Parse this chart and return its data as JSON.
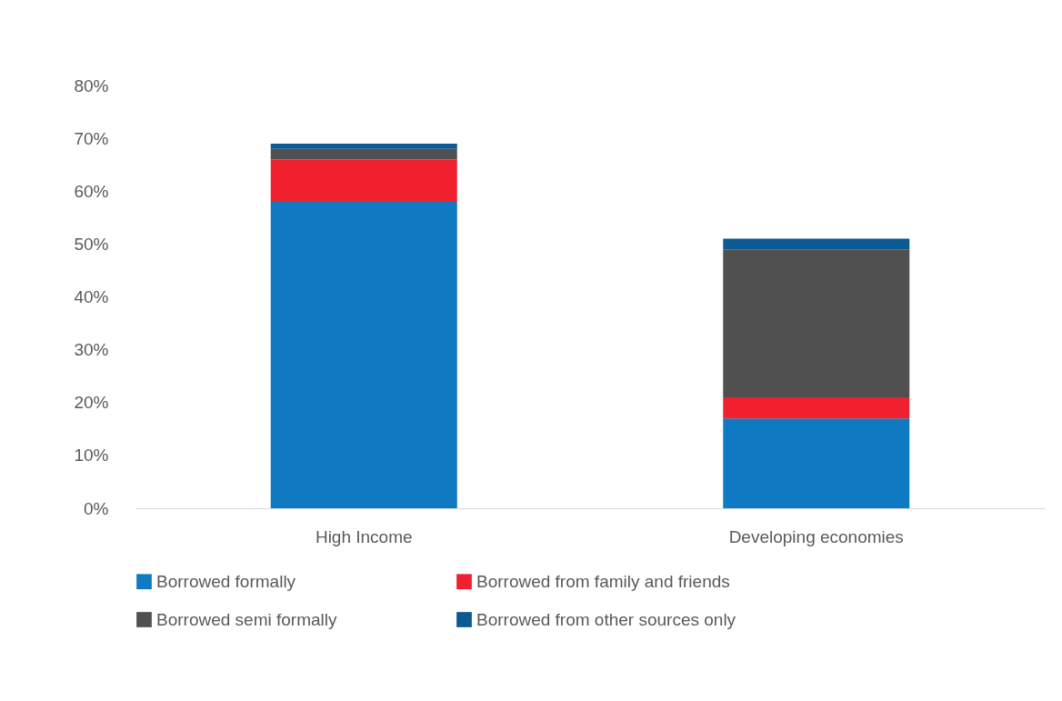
{
  "chart_data": {
    "type": "bar",
    "stacked": true,
    "categories": [
      "High Income",
      "Developing economies"
    ],
    "series": [
      {
        "name": "Borrowed formally",
        "color": "#0f7ac2",
        "values": [
          58,
          17
        ]
      },
      {
        "name": "Borrowed from family and friends",
        "color": "#f0202f",
        "values": [
          8,
          4
        ]
      },
      {
        "name": "Borrowed semi formally",
        "color": "#505050",
        "values": [
          2,
          28
        ]
      },
      {
        "name": "Borrowed from other sources only",
        "color": "#0b5a94",
        "values": [
          1,
          2
        ]
      }
    ],
    "ylim": [
      0,
      80
    ],
    "yticks": [
      {
        "value": 0,
        "label": "0%"
      },
      {
        "value": 10,
        "label": "10%"
      },
      {
        "value": 20,
        "label": "20%"
      },
      {
        "value": 30,
        "label": "30%"
      },
      {
        "value": 40,
        "label": "40%"
      },
      {
        "value": 50,
        "label": "50%"
      },
      {
        "value": 60,
        "label": "60%"
      },
      {
        "value": 70,
        "label": "70%"
      },
      {
        "value": 80,
        "label": "80%"
      }
    ],
    "grid": false,
    "legend": "bottom"
  }
}
